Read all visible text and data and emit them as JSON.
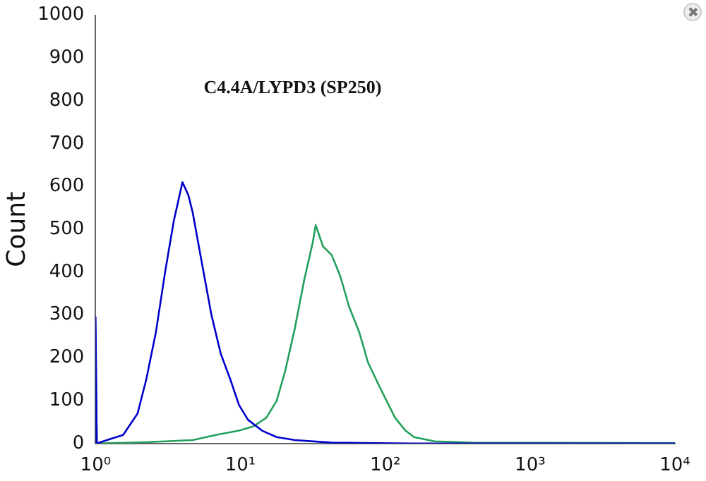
{
  "chart_data": {
    "type": "line",
    "title": "C4.4A/LYPD3 (SP250)",
    "ylabel": "Count",
    "log": "x",
    "grid": false,
    "legend": false,
    "marker": "none",
    "line_style": "solid",
    "xlim": [
      1,
      10000
    ],
    "xticks": [
      {
        "value": 1,
        "label": "10⁰"
      },
      {
        "value": 10,
        "label": "10¹"
      },
      {
        "value": 100,
        "label": "10²"
      },
      {
        "value": 1000,
        "label": "10³"
      },
      {
        "value": 10000,
        "label": "10⁴"
      }
    ],
    "ylim": [
      0,
      1000
    ],
    "yticks": [
      0,
      100,
      200,
      300,
      400,
      500,
      600,
      700,
      800,
      900,
      1000
    ],
    "series": [
      {
        "color": "#0000cc",
        "x": [
          1,
          1,
          1.02,
          1.25,
          1.55,
          1.95,
          2.24,
          2.61,
          3.02,
          3.47,
          3.98,
          4.37,
          4.68,
          5.43,
          6.31,
          7.31,
          8.51,
          9.77,
          11.3,
          14.1,
          17.8,
          23.8,
          42.7,
          158,
          10000
        ],
        "values": [
          0,
          295,
          0,
          10,
          20,
          70,
          150,
          260,
          400,
          520,
          610,
          580,
          540,
          420,
          300,
          210,
          150,
          90,
          55,
          30,
          15,
          8,
          2,
          0,
          0
        ]
      },
      {
        "color": "#22a05a",
        "x": [
          1,
          1,
          1.02,
          2.24,
          4.68,
          6.76,
          9.77,
          12.3,
          15.1,
          17.8,
          20.4,
          23.8,
          27.5,
          31.6,
          33.1,
          37.2,
          42.7,
          49,
          56.2,
          66.1,
          75.9,
          89.1,
          102,
          117,
          138,
          158,
          219,
          389,
          10000
        ],
        "values": [
          0,
          200,
          0,
          3,
          8,
          20,
          30,
          40,
          60,
          100,
          170,
          270,
          380,
          470,
          510,
          460,
          440,
          390,
          320,
          260,
          190,
          140,
          100,
          60,
          30,
          15,
          5,
          2,
          1
        ]
      }
    ]
  }
}
